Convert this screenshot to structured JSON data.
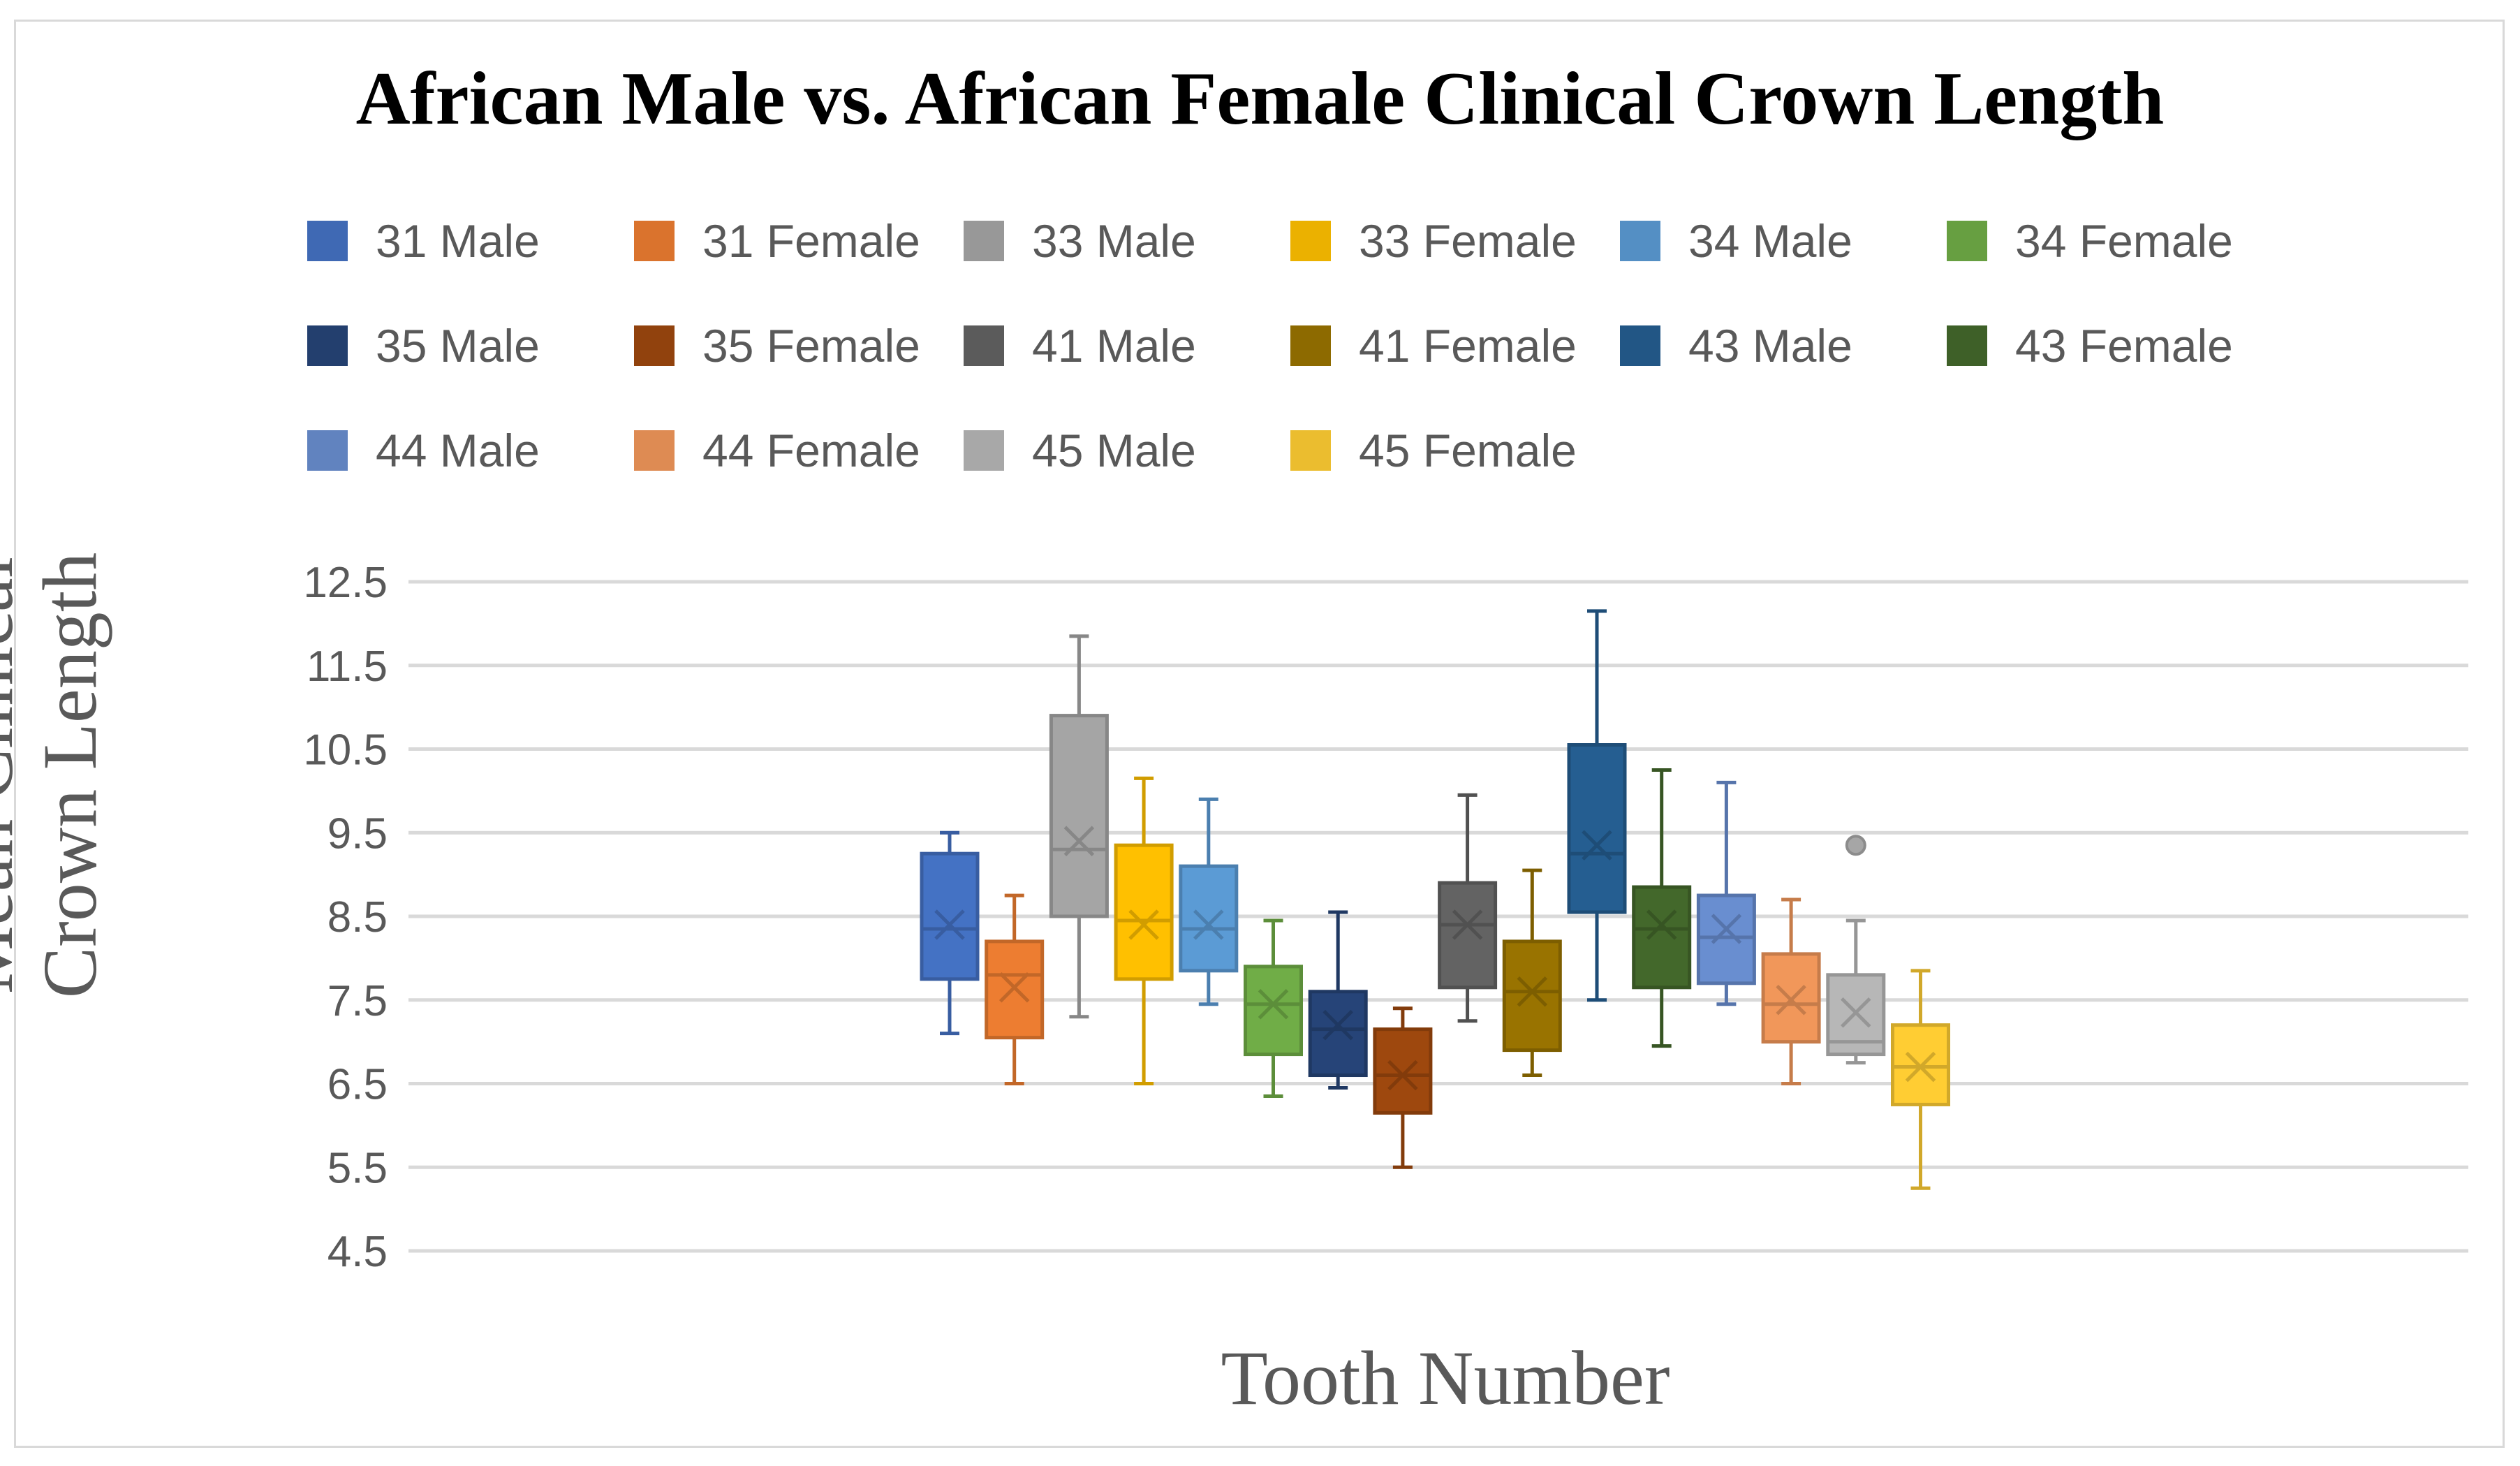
{
  "chart_data": {
    "type": "box",
    "title": "African Male vs. African Female Clinical Crown Length",
    "xlabel": "Tooth Number",
    "ylabel": "Mean Clinical Crown Length",
    "ylim": [
      4.5,
      12.5
    ],
    "yticks": [
      "12.5",
      "11.5",
      "10.5",
      "9.5",
      "8.5",
      "7.5",
      "6.5",
      "5.5",
      "4.5"
    ],
    "grid": true,
    "legend_position": "top",
    "series": [
      {
        "name": "31 Male",
        "color": "#4472c4",
        "min": 7.1,
        "q1": 7.75,
        "median": 8.35,
        "q3": 9.25,
        "max": 9.5,
        "mean": 8.4,
        "outliers": []
      },
      {
        "name": "31 Female",
        "color": "#ed7d31",
        "min": 6.5,
        "q1": 7.05,
        "median": 7.8,
        "q3": 8.2,
        "max": 8.75,
        "mean": 7.65,
        "outliers": []
      },
      {
        "name": "33 Male",
        "color": "#a5a5a5",
        "min": 7.3,
        "q1": 8.5,
        "median": 9.3,
        "q3": 10.9,
        "max": 11.85,
        "mean": 9.4,
        "outliers": []
      },
      {
        "name": "33 Female",
        "color": "#ffc000",
        "min": 6.5,
        "q1": 7.75,
        "median": 8.45,
        "q3": 9.35,
        "max": 10.15,
        "mean": 8.4,
        "outliers": []
      },
      {
        "name": "34 Male",
        "color": "#5b9bd5",
        "min": 7.45,
        "q1": 7.85,
        "median": 8.35,
        "q3": 9.1,
        "max": 9.9,
        "mean": 8.4,
        "outliers": []
      },
      {
        "name": "34 Female",
        "color": "#70ad47",
        "min": 6.35,
        "q1": 6.85,
        "median": 7.45,
        "q3": 7.9,
        "max": 8.45,
        "mean": 7.45,
        "outliers": []
      },
      {
        "name": "35 Male",
        "color": "#264478",
        "min": 6.45,
        "q1": 6.6,
        "median": 7.15,
        "q3": 7.6,
        "max": 8.55,
        "mean": 7.2,
        "outliers": []
      },
      {
        "name": "35 Female",
        "color": "#9e480e",
        "min": 5.5,
        "q1": 6.15,
        "median": 6.6,
        "q3": 7.15,
        "max": 7.4,
        "mean": 6.6,
        "outliers": []
      },
      {
        "name": "41 Male",
        "color": "#636363",
        "min": 7.25,
        "q1": 7.65,
        "median": 8.4,
        "q3": 8.9,
        "max": 9.95,
        "mean": 8.4,
        "outliers": []
      },
      {
        "name": "41 Female",
        "color": "#997300",
        "min": 6.6,
        "q1": 6.9,
        "median": 7.6,
        "q3": 8.2,
        "max": 9.05,
        "mean": 7.6,
        "outliers": []
      },
      {
        "name": "43 Male",
        "color": "#255e91",
        "min": 7.5,
        "q1": 8.55,
        "median": 9.25,
        "q3": 10.55,
        "max": 12.15,
        "mean": 9.35,
        "outliers": []
      },
      {
        "name": "43 Female",
        "color": "#43682b",
        "min": 6.95,
        "q1": 7.65,
        "median": 8.35,
        "q3": 8.85,
        "max": 10.25,
        "mean": 8.4,
        "outliers": []
      },
      {
        "name": "44 Male",
        "color": "#698ed0",
        "min": 7.45,
        "q1": 7.7,
        "median": 8.25,
        "q3": 8.75,
        "max": 10.1,
        "mean": 8.35,
        "outliers": []
      },
      {
        "name": "44 Female",
        "color": "#f1975a",
        "min": 6.5,
        "q1": 7.0,
        "median": 7.45,
        "q3": 8.05,
        "max": 8.7,
        "mean": 7.5,
        "outliers": []
      },
      {
        "name": "45 Male",
        "color": "#b7b7b7",
        "min": 6.75,
        "q1": 6.85,
        "median": 7.0,
        "q3": 7.8,
        "max": 8.45,
        "mean": 7.35,
        "outliers": [
          9.35
        ]
      },
      {
        "name": "45 Female",
        "color": "#ffcd33",
        "min": 5.25,
        "q1": 6.25,
        "median": 6.7,
        "q3": 7.2,
        "max": 7.85,
        "mean": 6.7,
        "outliers": []
      }
    ]
  }
}
